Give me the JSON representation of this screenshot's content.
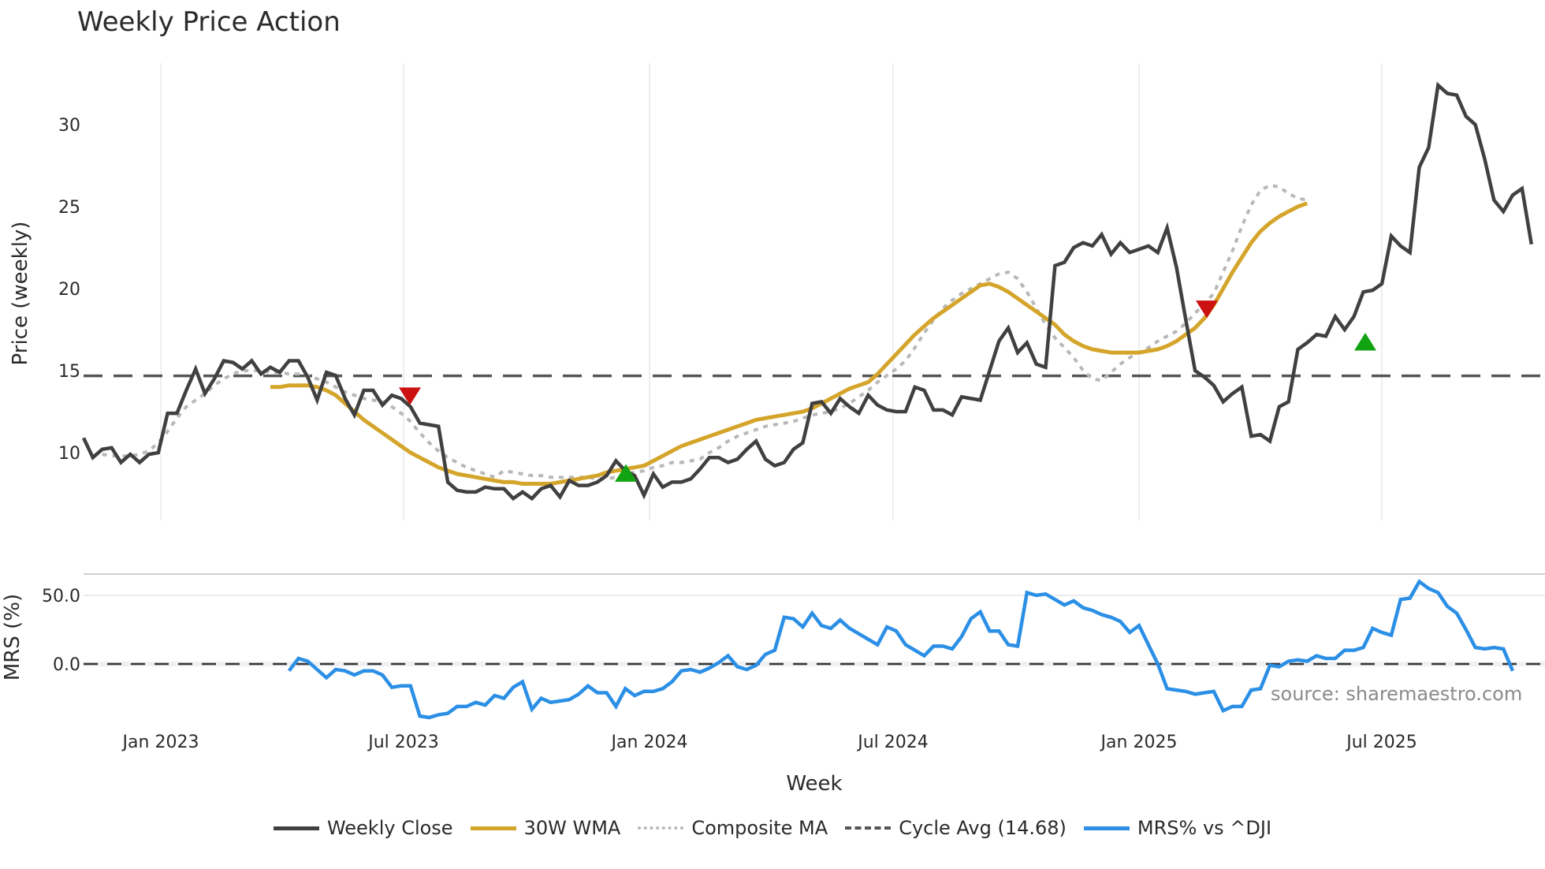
{
  "title": "Weekly Price Action",
  "source": "source: sharemaestro.com",
  "legend": [
    {
      "label": "Weekly Close",
      "color": "#404040",
      "style": "solid"
    },
    {
      "label": "30W WMA",
      "color": "#D4A52A",
      "style": "solid"
    },
    {
      "label": "Composite MA",
      "color": "#B8B8B8",
      "style": "dotted"
    },
    {
      "label": "Cycle Avg (14.68)",
      "color": "#555555",
      "style": "dashed"
    },
    {
      "label": "MRS% vs ^DJI",
      "color": "#2B8FE6",
      "style": "solid"
    }
  ],
  "chart_data": [
    {
      "type": "line",
      "title": "Weekly Price Action",
      "xlabel": "Week",
      "ylabel": "Price (weekly)",
      "ylim": [
        5.5,
        33.5
      ],
      "yticks": [
        10,
        15,
        20,
        25,
        30
      ],
      "xticks": [
        "Jan 2023",
        "Jul 2023",
        "Jan 2024",
        "Jul 2024",
        "Jan 2025",
        "Jul 2025"
      ],
      "grid": "vertical",
      "cycle_avg": 14.68,
      "series": [
        {
          "name": "Weekly Close",
          "color": "#404040",
          "start_week": "2022-11-21",
          "values": [
            10.9,
            9.7,
            10.2,
            10.3,
            9.4,
            9.9,
            9.4,
            9.9,
            10.0,
            12.4,
            12.4,
            13.8,
            15.1,
            13.6,
            14.5,
            15.6,
            15.5,
            15.1,
            15.6,
            14.8,
            15.2,
            14.9,
            15.6,
            15.6,
            14.6,
            13.2,
            14.9,
            14.7,
            13.3,
            12.3,
            13.8,
            13.8,
            12.9,
            13.5,
            13.3,
            12.8,
            11.8,
            11.7,
            11.6,
            8.2,
            7.7,
            7.6,
            7.6,
            7.9,
            7.8,
            7.8,
            7.2,
            7.6,
            7.2,
            7.8,
            8.0,
            7.3,
            8.3,
            8.0,
            8.0,
            8.2,
            8.6,
            9.5,
            8.9,
            8.6,
            7.4,
            8.7,
            7.9,
            8.2,
            8.2,
            8.4,
            9.0,
            9.7,
            9.7,
            9.4,
            9.6,
            10.2,
            10.7,
            9.6,
            9.2,
            9.4,
            10.2,
            10.6,
            13.0,
            13.1,
            12.4,
            13.3,
            12.8,
            12.4,
            13.5,
            12.9,
            12.6,
            12.5,
            12.5,
            14.0,
            13.8,
            12.6,
            12.6,
            12.3,
            13.4,
            13.3,
            13.2,
            15.0,
            16.8,
            17.6,
            16.1,
            16.7,
            15.4,
            15.2,
            21.4,
            21.6,
            22.5,
            22.8,
            22.6,
            23.3,
            22.1,
            22.8,
            22.2,
            22.4,
            22.6,
            22.2,
            23.7,
            21.3,
            18.1,
            15.0,
            14.6,
            14.1,
            13.1,
            13.6,
            14.0,
            11.0,
            11.1,
            10.7,
            12.8,
            13.1,
            16.3,
            16.7,
            17.2,
            17.1,
            18.3,
            17.5,
            18.3,
            19.8,
            19.9,
            20.3,
            23.2,
            22.6,
            22.2,
            27.4,
            28.6,
            32.4,
            31.9,
            31.8,
            30.5,
            30.0,
            27.9,
            25.4,
            24.7,
            25.7,
            26.1,
            22.7
          ]
        },
        {
          "name": "30W WMA",
          "color": "#D4A52A",
          "start_week": "2023-04-10",
          "values": [
            14.0,
            14.0,
            14.1,
            14.1,
            14.1,
            14.0,
            13.8,
            13.5,
            13.0,
            12.5,
            12.0,
            11.6,
            11.2,
            10.8,
            10.4,
            10.0,
            9.7,
            9.4,
            9.1,
            8.9,
            8.7,
            8.6,
            8.5,
            8.4,
            8.3,
            8.2,
            8.2,
            8.1,
            8.1,
            8.1,
            8.1,
            8.2,
            8.3,
            8.4,
            8.5,
            8.6,
            8.8,
            8.9,
            9.0,
            9.1,
            9.2,
            9.5,
            9.8,
            10.1,
            10.4,
            10.6,
            10.8,
            11.0,
            11.2,
            11.4,
            11.6,
            11.8,
            12.0,
            12.1,
            12.2,
            12.3,
            12.4,
            12.5,
            12.7,
            13.0,
            13.3,
            13.6,
            13.9,
            14.1,
            14.3,
            14.8,
            15.4,
            16.0,
            16.6,
            17.2,
            17.7,
            18.2,
            18.6,
            19.0,
            19.4,
            19.8,
            20.2,
            20.3,
            20.1,
            19.8,
            19.4,
            19.0,
            18.6,
            18.2,
            17.8,
            17.2,
            16.8,
            16.5,
            16.3,
            16.2,
            16.1,
            16.1,
            16.1,
            16.1,
            16.2,
            16.3,
            16.5,
            16.8,
            17.2,
            17.6,
            18.2,
            19.0,
            20.0,
            21.0,
            21.9,
            22.8,
            23.5,
            24.0,
            24.4,
            24.7,
            25.0,
            25.2
          ]
        },
        {
          "name": "Composite MA",
          "color": "#B8B8B8",
          "start_week": "2022-12-05",
          "values": [
            9.9,
            9.8,
            9.8,
            9.8,
            9.9,
            10.1,
            10.6,
            11.3,
            12.1,
            12.8,
            13.2,
            13.6,
            14.1,
            14.5,
            14.8,
            15.0,
            15.0,
            15.0,
            14.9,
            14.9,
            14.8,
            14.8,
            14.7,
            14.5,
            14.3,
            14.0,
            13.7,
            13.5,
            13.3,
            13.2,
            13.1,
            12.8,
            12.4,
            11.9,
            11.2,
            10.6,
            10.1,
            9.7,
            9.4,
            9.1,
            8.9,
            8.7,
            8.5,
            8.9,
            8.8,
            8.7,
            8.6,
            8.6,
            8.5,
            8.5,
            8.5,
            8.5,
            8.5,
            8.4,
            8.4,
            8.5,
            8.7,
            8.8,
            8.9,
            9.1,
            9.2,
            9.4,
            9.4,
            9.5,
            9.6,
            10.0,
            10.3,
            10.7,
            11.0,
            11.2,
            11.4,
            11.6,
            11.7,
            11.8,
            11.9,
            12.1,
            12.3,
            12.4,
            12.5,
            12.7,
            13.0,
            13.4,
            13.8,
            14.3,
            14.7,
            15.1,
            15.6,
            16.4,
            17.3,
            18.1,
            18.8,
            19.3,
            19.7,
            20.0,
            20.3,
            20.6,
            20.9,
            21.0,
            20.6,
            19.8,
            18.8,
            17.8,
            17.0,
            16.4,
            15.8,
            15.0,
            14.5,
            14.4,
            14.9,
            15.4,
            15.8,
            16.1,
            16.4,
            16.8,
            17.1,
            17.4,
            17.9,
            18.5,
            19.1,
            19.7,
            21.0,
            22.3,
            23.8,
            25.1,
            26.0,
            26.3,
            26.2,
            25.8,
            25.5,
            25.4
          ]
        },
        {
          "name": "Cycle Avg (14.68)",
          "color": "#555555",
          "values": [
            14.68
          ]
        }
      ],
      "markers": [
        {
          "type": "sell",
          "shape": "triangle-down",
          "color": "#CC1111",
          "x_approx": "Jul 2023",
          "y": 13.5
        },
        {
          "type": "buy",
          "shape": "triangle-up",
          "color": "#11A311",
          "x_approx": "Dec 2023",
          "y": 8.7
        },
        {
          "type": "sell",
          "shape": "triangle-down",
          "color": "#CC1111",
          "x_approx": "Mar 2025",
          "y": 18.8
        },
        {
          "type": "buy",
          "shape": "triangle-up",
          "color": "#11A311",
          "x_approx": "Jun 2025",
          "y": 16.7
        }
      ]
    },
    {
      "type": "line",
      "title": "",
      "xlabel": "Week",
      "ylabel": "MRS (%)",
      "ylim": [
        -45,
        65
      ],
      "yticks": [
        "50.0",
        "0.0"
      ],
      "reference_line": 0,
      "series": [
        {
          "name": "MRS% vs ^DJI",
          "color": "#2B8FE6",
          "start_week": "2023-04-24",
          "values": [
            -5,
            4,
            2,
            -4,
            -10,
            -4,
            -5,
            -8,
            -5,
            -5,
            -8,
            -17,
            -16,
            -16,
            -38,
            -39,
            -37,
            -36,
            -31,
            -31,
            -28,
            -30,
            -23,
            -25,
            -17,
            -13,
            -33,
            -25,
            -28,
            -27,
            -26,
            -22,
            -16,
            -21,
            -21,
            -31,
            -18,
            -23,
            -20,
            -20,
            -18,
            -13,
            -5,
            -4,
            -6,
            -3,
            1,
            6,
            -2,
            -4,
            -1,
            7,
            10,
            34,
            33,
            27,
            37,
            28,
            26,
            32,
            26,
            22,
            18,
            14,
            27,
            24,
            14,
            10,
            6,
            13,
            13,
            11,
            20,
            33,
            38,
            24,
            24,
            14,
            13,
            52,
            50,
            51,
            47,
            43,
            46,
            41,
            39,
            36,
            34,
            31,
            23,
            28,
            14,
            0,
            -18,
            -19,
            -20,
            -22,
            -21,
            -20,
            -34,
            -31,
            -31,
            -19,
            -18,
            -1,
            -2,
            2,
            3,
            2,
            6,
            4,
            4,
            10,
            10,
            12,
            26,
            23,
            21,
            47,
            48,
            60,
            55,
            52,
            42,
            37,
            25,
            12,
            11,
            12,
            11,
            -5
          ]
        }
      ]
    }
  ],
  "axes": {
    "price_ylabel": "Price (weekly)",
    "mrs_ylabel": "MRS (%)",
    "xlabel": "Week",
    "price_ticks": [
      "30",
      "25",
      "20",
      "15",
      "10"
    ],
    "mrs_ticks": [
      "50.0",
      "0.0"
    ],
    "x_ticks": [
      "Jan 2023",
      "Jul 2023",
      "Jan 2024",
      "Jul 2024",
      "Jan 2025",
      "Jul 2025"
    ]
  }
}
